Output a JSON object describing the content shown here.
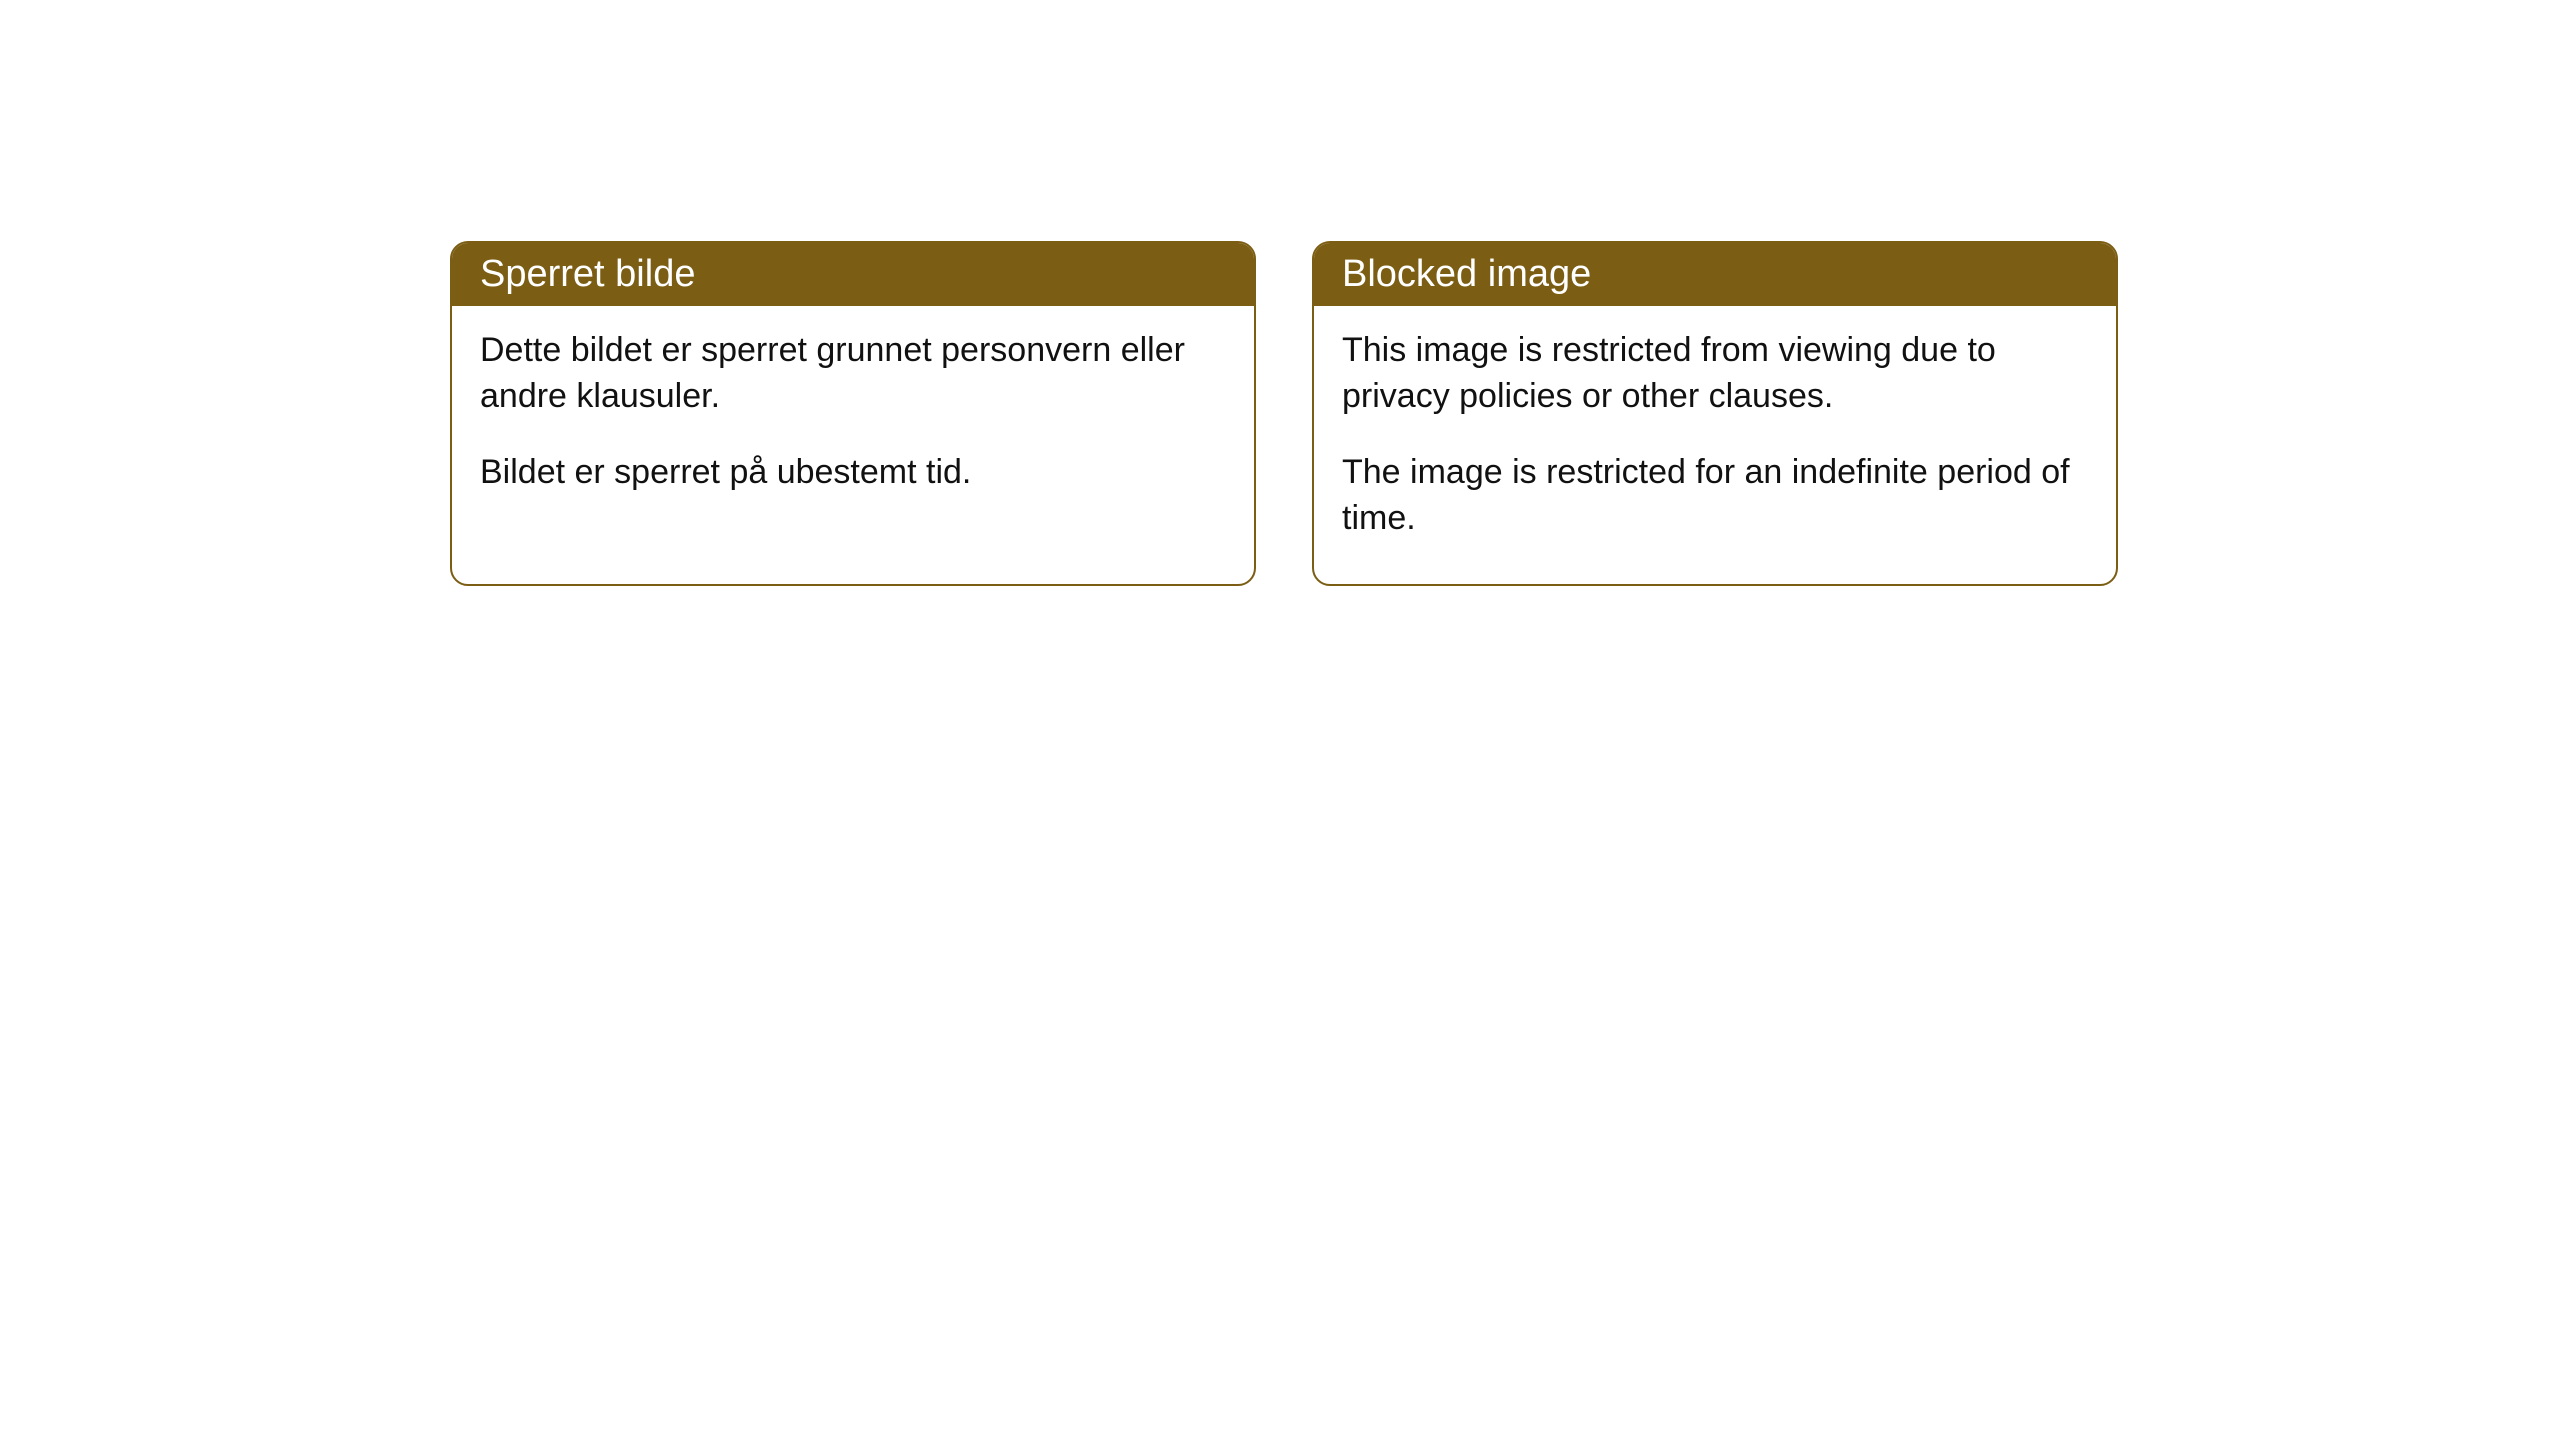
{
  "cards": [
    {
      "title": "Sperret bilde",
      "para1": "Dette bildet er sperret grunnet personvern eller andre klausuler.",
      "para2": "Bildet er sperret på ubestemt tid."
    },
    {
      "title": "Blocked image",
      "para1": "This image is restricted from viewing due to privacy policies or other clauses.",
      "para2": "The image is restricted for an indefinite period of time."
    }
  ],
  "colors": {
    "header_bg": "#7b5d13",
    "header_text": "#ffffff",
    "border": "#7b5d13",
    "body_text": "#111111",
    "background": "#ffffff"
  }
}
